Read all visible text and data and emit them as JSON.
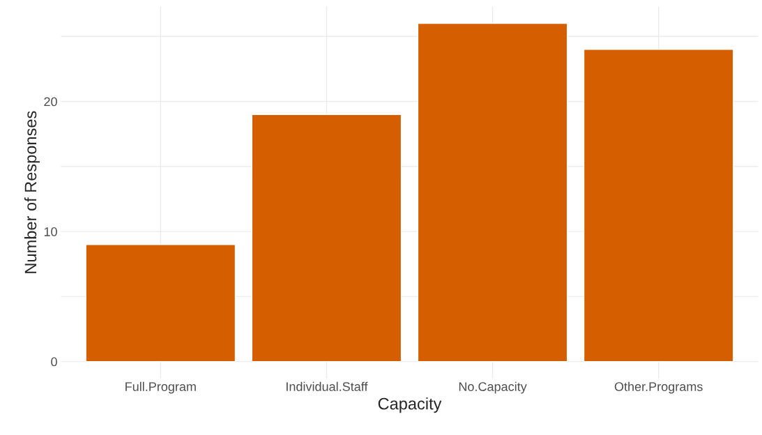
{
  "chart_data": {
    "type": "bar",
    "xlabel": "Capacity",
    "ylabel": "Number of Responses",
    "categories": [
      "Full.Program",
      "Individual.Staff",
      "No.Capacity",
      "Other.Programs"
    ],
    "values": [
      9,
      19,
      26,
      24
    ],
    "color": "#d55e00",
    "ylim": [
      -1.3,
      27.3
    ],
    "yticks": [
      0,
      {
        "value": 5,
        "label": null
      },
      10,
      {
        "value": 15,
        "label": null
      },
      20,
      {
        "value": 25,
        "label": null
      }
    ],
    "grid": true
  }
}
